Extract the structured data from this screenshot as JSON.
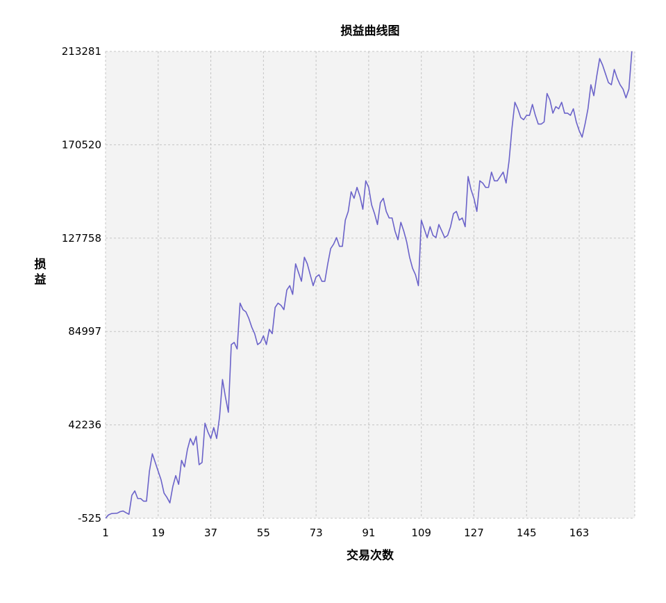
{
  "chart_data": {
    "type": "line",
    "title": "损益曲线图",
    "xlabel": "交易次数",
    "ylabel": "损益",
    "xlim": [
      1,
      182
    ],
    "ylim": [
      -525,
      213281
    ],
    "x_ticks": [
      1,
      19,
      37,
      55,
      73,
      91,
      109,
      127,
      145,
      163
    ],
    "y_ticks": [
      -525,
      42236,
      84997,
      127758,
      170520,
      213281
    ],
    "grid": true,
    "legend": "none",
    "series": [
      {
        "color": "#6a62c9",
        "values": [
          -525,
          1000,
          1600,
          1700,
          1800,
          2500,
          2800,
          2000,
          1300,
          10000,
          12000,
          8500,
          8500,
          7300,
          7300,
          21000,
          29000,
          25000,
          21000,
          17000,
          11000,
          9000,
          6500,
          14000,
          19000,
          15000,
          26000,
          23000,
          31000,
          36000,
          33000,
          37000,
          24000,
          25000,
          43000,
          39000,
          36000,
          41000,
          36000,
          46000,
          63000,
          55000,
          48000,
          79000,
          80000,
          77000,
          98000,
          95000,
          94000,
          91000,
          87000,
          84000,
          79000,
          80000,
          83000,
          79000,
          86000,
          84000,
          96000,
          98000,
          97000,
          95000,
          104000,
          106000,
          102000,
          116000,
          112000,
          108000,
          119000,
          116000,
          111000,
          106000,
          110000,
          111000,
          108000,
          108000,
          116000,
          123000,
          125000,
          128000,
          124000,
          124000,
          136000,
          140000,
          149000,
          146000,
          151000,
          147000,
          141000,
          154000,
          151000,
          143000,
          139000,
          134000,
          144000,
          146000,
          140000,
          137000,
          137000,
          131000,
          127000,
          135000,
          131000,
          126000,
          119000,
          114000,
          111000,
          106000,
          136000,
          132000,
          128000,
          133000,
          129000,
          128000,
          134000,
          131000,
          128000,
          129000,
          133000,
          139000,
          140000,
          136000,
          137000,
          133000,
          156000,
          150000,
          146000,
          140000,
          154000,
          153000,
          151000,
          151000,
          158000,
          154000,
          154000,
          156000,
          158000,
          153000,
          163000,
          178000,
          190000,
          187000,
          183000,
          182000,
          184000,
          184000,
          189000,
          184000,
          180000,
          180000,
          181000,
          194000,
          191000,
          185000,
          188000,
          187000,
          190000,
          185000,
          185000,
          184000,
          187000,
          181000,
          177000,
          174000,
          180000,
          187000,
          198000,
          193000,
          202000,
          210000,
          207000,
          203000,
          199000,
          198000,
          205000,
          201000,
          198000,
          196000,
          192000,
          196000,
          213281
        ]
      }
    ]
  }
}
